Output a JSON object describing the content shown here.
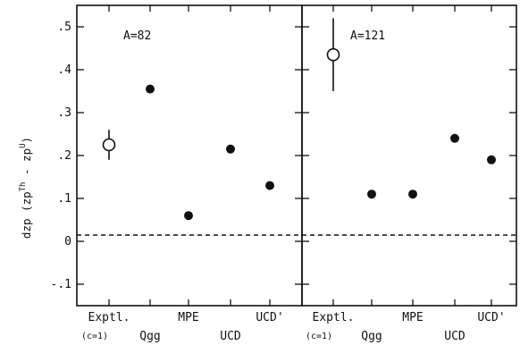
{
  "chart_data": {
    "type": "scatter",
    "ylabel": {
      "main": "dzp (zp",
      "sup1": "Th",
      "mid": " - zp",
      "sup2": "U",
      "end": ")"
    },
    "ylim": [
      -0.15,
      0.55
    ],
    "yticks": [
      {
        "value": 0.5,
        "label": ".5"
      },
      {
        "value": 0.4,
        "label": ".4"
      },
      {
        "value": 0.3,
        "label": ".3"
      },
      {
        "value": 0.2,
        "label": ".2"
      },
      {
        "value": 0.1,
        "label": ".1"
      },
      {
        "value": 0.0,
        "label": "0"
      },
      {
        "value": -0.1,
        "label": "-.1"
      }
    ],
    "reference_line": 0,
    "grid": false,
    "panels": [
      {
        "label": "A=82",
        "categories": [
          {
            "label": "Exptl.",
            "sub": "(c=1)",
            "row": 0
          },
          {
            "label": "Qgg",
            "sub": "",
            "row": 1
          },
          {
            "label": "MPE",
            "sub": "",
            "row": 0
          },
          {
            "label": "UCD",
            "sub": "",
            "row": 1
          },
          {
            "label": "UCD'",
            "sub": "",
            "row": 0
          }
        ],
        "points": [
          {
            "category": "Exptl.",
            "y": 0.225,
            "err": 0.035,
            "marker": "open"
          },
          {
            "category": "Qgg",
            "y": 0.355,
            "marker": "filled"
          },
          {
            "category": "MPE",
            "y": 0.06,
            "marker": "filled"
          },
          {
            "category": "UCD",
            "y": 0.215,
            "marker": "filled"
          },
          {
            "category": "UCD'",
            "y": 0.13,
            "marker": "filled"
          }
        ]
      },
      {
        "label": "A=121",
        "categories": [
          {
            "label": "Exptl.",
            "sub": "(c=1)",
            "row": 0
          },
          {
            "label": "Qgg",
            "sub": "",
            "row": 1
          },
          {
            "label": "MPE",
            "sub": "",
            "row": 0
          },
          {
            "label": "UCD",
            "sub": "",
            "row": 1
          },
          {
            "label": "UCD'",
            "sub": "",
            "row": 0
          }
        ],
        "points": [
          {
            "category": "Exptl.",
            "y": 0.435,
            "err": 0.085,
            "marker": "open"
          },
          {
            "category": "Qgg",
            "y": 0.11,
            "marker": "filled"
          },
          {
            "category": "MPE",
            "y": 0.11,
            "marker": "filled"
          },
          {
            "category": "UCD",
            "y": 0.24,
            "marker": "filled"
          },
          {
            "category": "UCD'",
            "y": 0.19,
            "marker": "filled"
          }
        ]
      }
    ]
  }
}
